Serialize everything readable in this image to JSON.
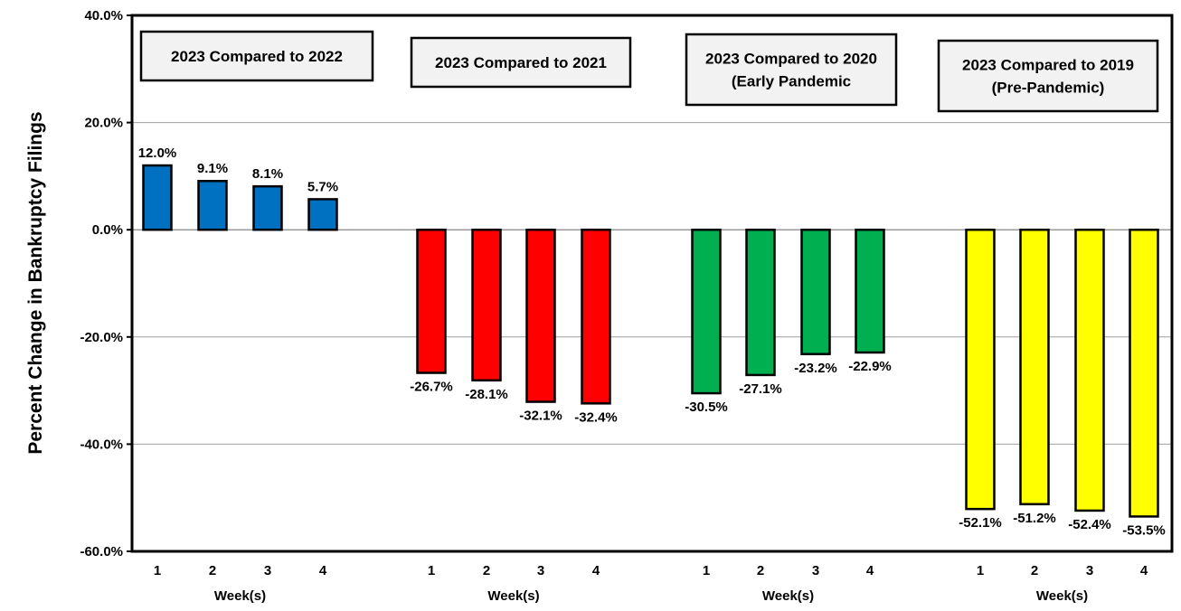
{
  "chart_data": {
    "type": "bar",
    "ylabel": "Percent Change in Bankruptcy Filings",
    "ylim": [
      -60,
      40
    ],
    "yticks": [
      40,
      20,
      0,
      -20,
      -40,
      -60
    ],
    "ytick_labels": [
      "40.0%",
      "20.0%",
      "0.0%",
      "-20.0%",
      "-40.0%",
      "-60.0%"
    ],
    "grid": true,
    "groups": [
      {
        "title_lines": [
          "2023 Compared to 2022"
        ],
        "categories": [
          "1",
          "2",
          "3",
          "4"
        ],
        "values": [
          12.0,
          9.1,
          8.1,
          5.7
        ],
        "labels": [
          "12.0%",
          "9.1%",
          "8.1%",
          "5.7%"
        ],
        "xlabel": "Week(s)",
        "color": "#0070C0"
      },
      {
        "title_lines": [
          "2023 Compared to 2021"
        ],
        "categories": [
          "1",
          "2",
          "3",
          "4"
        ],
        "values": [
          -26.7,
          -28.1,
          -32.1,
          -32.4
        ],
        "labels": [
          "-26.7%",
          "-28.1%",
          "-32.1%",
          "-32.4%"
        ],
        "xlabel": "Week(s)",
        "color": "#FF0000"
      },
      {
        "title_lines": [
          "2023 Compared to 2020",
          "(Early Pandemic"
        ],
        "categories": [
          "1",
          "2",
          "3",
          "4"
        ],
        "values": [
          -30.5,
          -27.1,
          -23.2,
          -22.9
        ],
        "labels": [
          "-30.5%",
          "-27.1%",
          "-23.2%",
          "-22.9%"
        ],
        "xlabel": "Week(s)",
        "color": "#00B050"
      },
      {
        "title_lines": [
          "2023 Compared to 2019",
          "(Pre-Pandemic)"
        ],
        "categories": [
          "1",
          "2",
          "3",
          "4"
        ],
        "values": [
          -52.1,
          -51.2,
          -52.4,
          -53.5
        ],
        "labels": [
          "-52.1%",
          "-51.2%",
          "-52.4%",
          "-53.5%"
        ],
        "xlabel": "Week(s)",
        "color": "#FFFF00"
      }
    ]
  }
}
